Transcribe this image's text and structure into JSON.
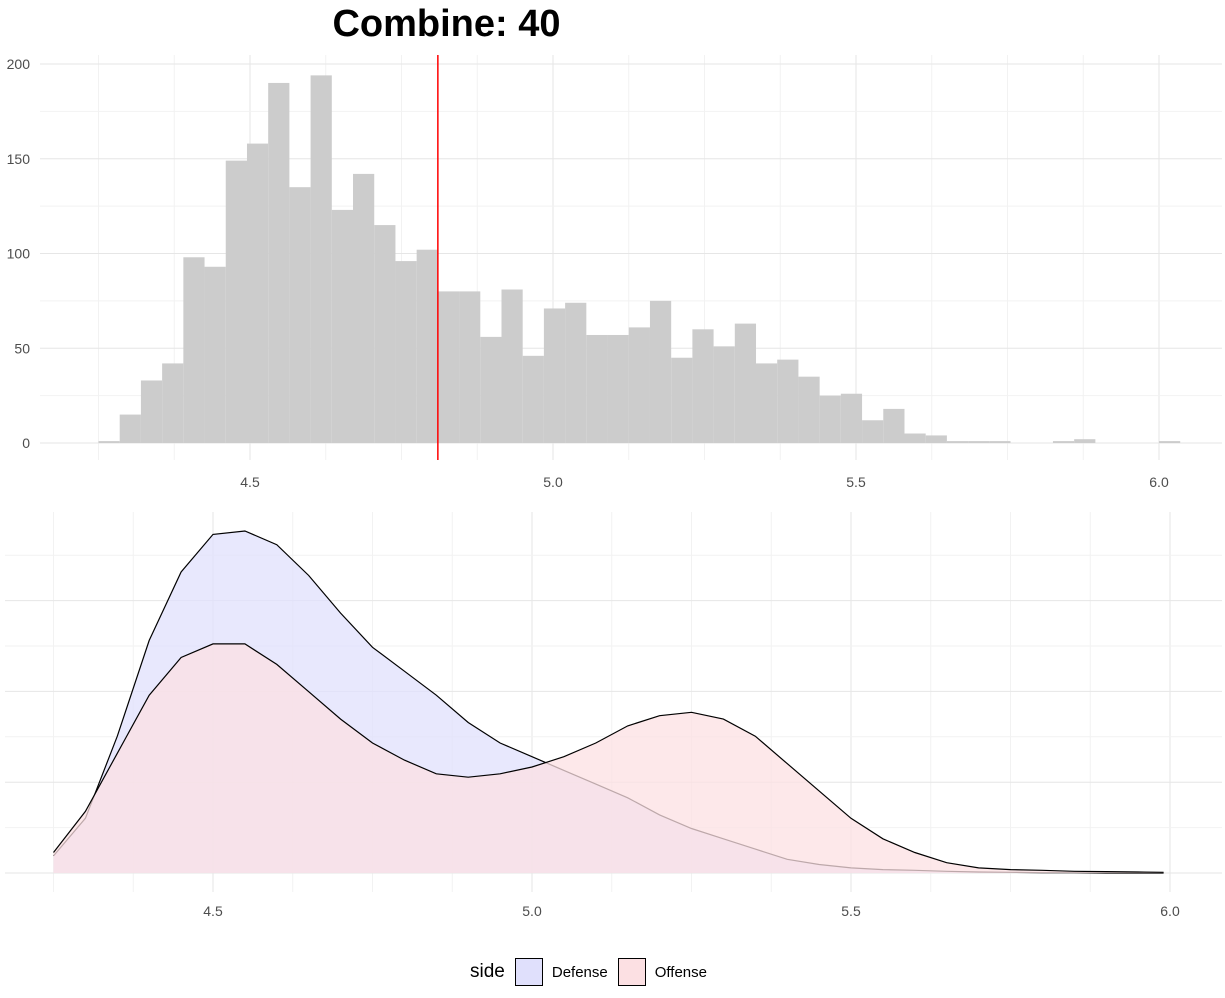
{
  "chart_data": [
    {
      "type": "histogram",
      "title": "Combine: 40",
      "xlim": [
        4.25,
        6.05
      ],
      "ylim": [
        0,
        200
      ],
      "x_ticks": [
        4.5,
        5.0,
        5.5,
        6.0
      ],
      "x_tick_labels": [
        "4.5",
        "5.0",
        "5.5",
        "6.0"
      ],
      "y_ticks": [
        0,
        50,
        100,
        150,
        200
      ],
      "y_tick_labels": [
        "0",
        "50",
        "100",
        "150",
        "200"
      ],
      "bin_width": 0.035,
      "bin_start": 4.25,
      "counts": [
        1,
        15,
        33,
        42,
        98,
        93,
        149,
        158,
        190,
        135,
        194,
        123,
        142,
        115,
        96,
        102,
        80,
        80,
        56,
        81,
        46,
        71,
        74,
        57,
        57,
        61,
        75,
        45,
        60,
        51,
        63,
        42,
        44,
        35,
        25,
        26,
        12,
        18,
        5,
        4,
        1,
        1,
        1,
        0,
        0,
        1,
        2,
        0,
        0,
        0,
        1
      ],
      "bar_color": "#cccccc",
      "reference_line": {
        "x": 4.81,
        "color": "#ff0000"
      },
      "grid": true
    },
    {
      "type": "area",
      "xlim": [
        4.25,
        6.05
      ],
      "x_ticks": [
        4.5,
        5.0,
        5.5,
        6.0
      ],
      "x_tick_labels": [
        "4.5",
        "5.0",
        "5.5",
        "6.0"
      ],
      "y_axis_labels_shown": false,
      "ylim": [
        0,
        1.05
      ],
      "x": [
        4.25,
        4.3,
        4.35,
        4.4,
        4.45,
        4.5,
        4.55,
        4.6,
        4.65,
        4.7,
        4.75,
        4.8,
        4.85,
        4.9,
        4.95,
        5.0,
        5.05,
        5.1,
        5.15,
        5.2,
        5.25,
        5.3,
        5.35,
        5.4,
        5.45,
        5.5,
        5.55,
        5.6,
        5.65,
        5.7,
        5.75,
        5.8,
        5.85,
        5.9,
        5.95,
        5.99
      ],
      "series": [
        {
          "name": "Defense",
          "fill": "#e0e0fc",
          "values": [
            0.05,
            0.16,
            0.4,
            0.68,
            0.88,
            0.99,
            1.0,
            0.96,
            0.87,
            0.76,
            0.66,
            0.59,
            0.52,
            0.44,
            0.38,
            0.34,
            0.3,
            0.26,
            0.22,
            0.17,
            0.13,
            0.1,
            0.07,
            0.04,
            0.025,
            0.015,
            0.01,
            0.008,
            0.005,
            0.003,
            0.002,
            0.001,
            0.001,
            0.0,
            0.0,
            0.0
          ]
        },
        {
          "name": "Offense",
          "fill": "#fce0e3",
          "values": [
            0.06,
            0.18,
            0.35,
            0.52,
            0.63,
            0.67,
            0.67,
            0.61,
            0.53,
            0.45,
            0.38,
            0.33,
            0.29,
            0.28,
            0.29,
            0.31,
            0.34,
            0.38,
            0.43,
            0.46,
            0.47,
            0.45,
            0.4,
            0.32,
            0.24,
            0.16,
            0.1,
            0.06,
            0.03,
            0.015,
            0.01,
            0.008,
            0.005,
            0.004,
            0.003,
            0.002
          ]
        }
      ],
      "grid": true,
      "legend": {
        "title": "side",
        "position": "bottom"
      }
    }
  ]
}
